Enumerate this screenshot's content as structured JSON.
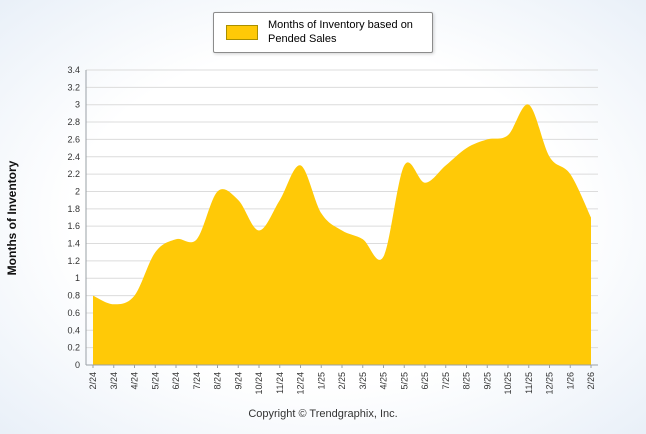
{
  "legend": {
    "label": "Months of Inventory based on Pended Sales",
    "swatch_color": "#FFC907"
  },
  "footer": "Copyright © Trendgraphix, Inc.",
  "chart_data": {
    "type": "area",
    "title": "",
    "xlabel": "",
    "ylabel": "Months of Inventory",
    "x": [
      "2/24",
      "3/24",
      "4/24",
      "5/24",
      "6/24",
      "7/24",
      "8/24",
      "9/24",
      "10/24",
      "11/24",
      "12/24",
      "1/25",
      "2/25",
      "3/25",
      "4/25",
      "5/25",
      "6/25",
      "7/25",
      "8/25",
      "9/25",
      "10/25",
      "11/25",
      "12/25",
      "1/26",
      "2/26"
    ],
    "values": [
      0.8,
      0.7,
      0.8,
      1.3,
      1.45,
      1.45,
      2.0,
      1.9,
      1.55,
      1.9,
      2.3,
      1.75,
      1.55,
      1.45,
      1.25,
      2.3,
      2.1,
      2.3,
      2.5,
      2.6,
      2.65,
      3.0,
      2.4,
      2.2,
      1.7
    ],
    "ylim": [
      0,
      3.4
    ],
    "ytick_step": 0.2,
    "fill_color": "#FFC907",
    "grid": true,
    "legend_position": "top-center",
    "grid_color": "#dcdcdc",
    "axis_color": "#9aa0a6",
    "tick_label_color": "#333333"
  }
}
